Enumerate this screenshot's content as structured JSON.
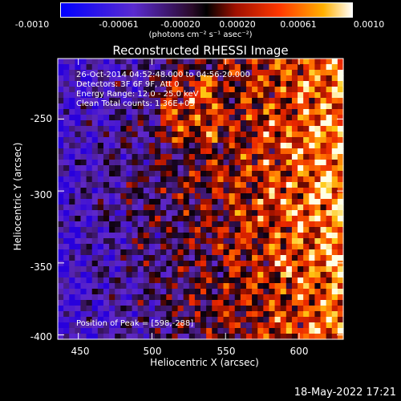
{
  "colorbar": {
    "ticks": [
      "-0.0010",
      "-0.00061",
      "-0.00020",
      "0.00020",
      "0.00061",
      "0.0010"
    ],
    "unit_label": "(photons cm⁻² s⁻¹ asec⁻²)",
    "range": [
      -0.001,
      0.001
    ]
  },
  "overlay": {
    "line1": "26-Oct-2014 04:52:48.000 to 04:56:20.000",
    "line2": "Detectors: 3F 6F 9F, Att 0",
    "line3": "Energy Range: 12.0 - 25.0 keV",
    "line4": "Clean     Total counts: 1.36E+03",
    "peak": "Position of Peak = [598,-288]"
  },
  "footer": {
    "timestamp": "18-May-2022 17:21"
  },
  "chart_data": {
    "type": "heatmap",
    "title": "Reconstructed RHESSI Image",
    "xlabel": "Heliocentric X (arcsec)",
    "ylabel": "Heliocentric Y (arcsec)",
    "xlim": [
      436,
      630
    ],
    "ylim": [
      -403,
      -208
    ],
    "xticks": [
      450,
      500,
      550,
      600
    ],
    "yticks": [
      -250,
      -300,
      -350,
      -400
    ],
    "peak": [
      598,
      -288
    ],
    "colormap": "rhessi-blue-purple-red-yellow"
  }
}
